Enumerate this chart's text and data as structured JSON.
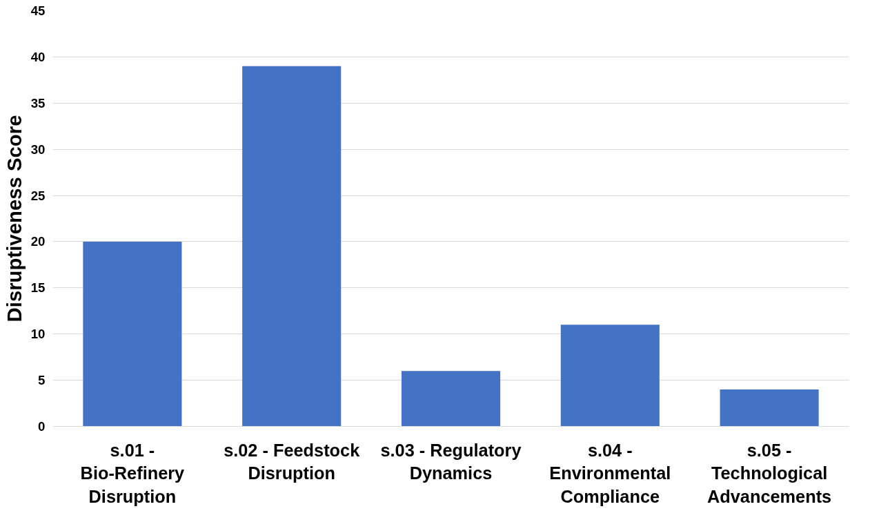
{
  "chart_data": {
    "type": "bar",
    "ylabel": "Disruptiveness Score",
    "categories": [
      "s.01 - Bio-Refinery Disruption",
      "s.02 - Feedstock Disruption",
      "s.03 - Regulatory Dynamics",
      "s.04 - Environmental Compliance",
      "s.05 - Technological Advancements"
    ],
    "values": [
      20,
      39,
      6,
      11,
      4
    ],
    "color": "#4472c4",
    "ylim": [
      0,
      45
    ],
    "yticks": [
      0,
      5,
      10,
      15,
      20,
      25,
      30,
      35,
      40,
      45
    ],
    "grid": "y"
  }
}
